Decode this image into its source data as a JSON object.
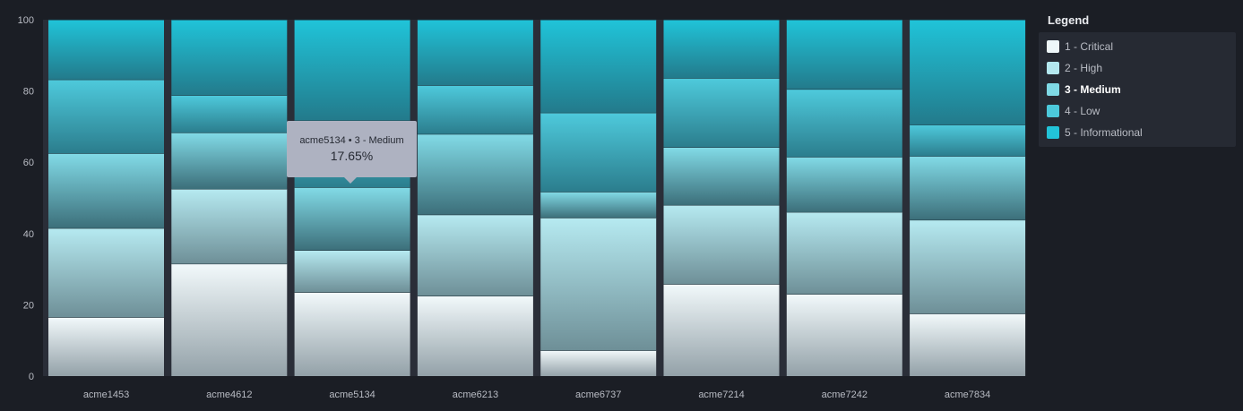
{
  "chart_data": {
    "type": "bar",
    "stacked": true,
    "categories": [
      "acme1453",
      "acme4612",
      "acme5134",
      "acme6213",
      "acme6737",
      "acme7214",
      "acme7242",
      "acme7834"
    ],
    "series": [
      {
        "name": "1 - Critical",
        "values": [
          16.5,
          31.5,
          23.5,
          22.5,
          7.2,
          25.8,
          23.0,
          17.5
        ]
      },
      {
        "name": "2 - High",
        "values": [
          25.0,
          21.0,
          11.8,
          22.8,
          37.2,
          22.2,
          23.0,
          26.3
        ]
      },
      {
        "name": "3 - Medium",
        "values": [
          21.0,
          15.8,
          17.65,
          22.6,
          7.3,
          16.2,
          15.5,
          17.9
        ]
      },
      {
        "name": "4 - Low",
        "values": [
          20.7,
          10.5,
          18.8,
          13.7,
          22.2,
          19.4,
          19.0,
          8.8
        ]
      },
      {
        "name": "5 - Informational",
        "values": [
          16.8,
          21.2,
          28.25,
          18.4,
          26.1,
          16.4,
          19.5,
          29.5
        ]
      }
    ],
    "ylim": [
      0,
      100
    ],
    "yticks": [
      0,
      20,
      40,
      60,
      80,
      100
    ],
    "grid": false,
    "legend_position": "right"
  },
  "legend": {
    "title": "Legend",
    "items": [
      {
        "label": "1 - Critical",
        "color": "#eef7f9"
      },
      {
        "label": "2 - High",
        "color": "#b4e8ef"
      },
      {
        "label": "3 - Medium",
        "color": "#7fd9e5"
      },
      {
        "label": "4 - Low",
        "color": "#4cc9db"
      },
      {
        "label": "5 - Informational",
        "color": "#22c3d8"
      }
    ],
    "active_index": 2
  },
  "tooltip": {
    "series": "acme5134 • 3 - Medium",
    "value": "17.65%"
  },
  "colors": {
    "background": "#1b1e25",
    "plot_background": "#2a2e38",
    "segment_top": [
      "#f2f9fb",
      "#b6eaf1",
      "#82dbe7",
      "#4ecadc",
      "#20c4d9"
    ],
    "segment_bottom": [
      "#93a1a8",
      "#6e8f97",
      "#3c6f7a",
      "#2b7d8d",
      "#237a8b"
    ]
  }
}
